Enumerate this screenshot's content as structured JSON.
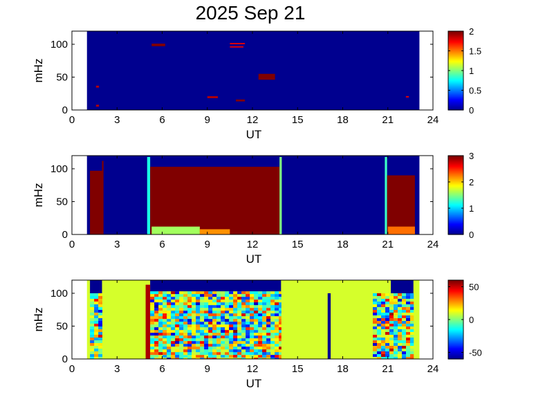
{
  "title": "2025 Sep 21",
  "colormap": [
    "#00008f",
    "#0000ff",
    "#0080ff",
    "#00ffff",
    "#80ff80",
    "#ffff00",
    "#ff8000",
    "#ff0000",
    "#800000"
  ],
  "chart_data": [
    {
      "type": "heatmap",
      "name": "panel-1",
      "xlabel": "UT",
      "ylabel": "mHz",
      "xlim": [
        0,
        24
      ],
      "ylim": [
        0,
        120
      ],
      "xticks": [
        0,
        3,
        6,
        9,
        12,
        15,
        18,
        21,
        24
      ],
      "yticks": [
        0,
        50,
        100
      ],
      "data_range": [
        1,
        23.1
      ],
      "colorbar": {
        "min": 0,
        "max": 2,
        "ticks": [
          0,
          0.5,
          1,
          1.5,
          2
        ],
        "tick_labels": [
          "0",
          "0.5",
          "1",
          "1.5",
          "2"
        ]
      },
      "background_value": 0,
      "features": [
        {
          "x0": 5.3,
          "x1": 6.2,
          "y0": 97,
          "y1": 101,
          "value": 2
        },
        {
          "x0": 10.5,
          "x1": 11.5,
          "y0": 100,
          "y1": 102,
          "value": 1.8
        },
        {
          "x0": 10.5,
          "x1": 11.4,
          "y0": 95,
          "y1": 97,
          "value": 1.8
        },
        {
          "x0": 12.4,
          "x1": 13.5,
          "y0": 46,
          "y1": 55,
          "value": 2
        },
        {
          "x0": 9.0,
          "x1": 9.7,
          "y0": 18,
          "y1": 21,
          "value": 1.9
        },
        {
          "x0": 10.9,
          "x1": 11.5,
          "y0": 13,
          "y1": 16,
          "value": 2
        },
        {
          "x0": 1.6,
          "x1": 1.8,
          "y0": 34,
          "y1": 37,
          "value": 1.9
        },
        {
          "x0": 1.6,
          "x1": 1.8,
          "y0": 5,
          "y1": 8,
          "value": 1.9
        },
        {
          "x0": 22.2,
          "x1": 22.4,
          "y0": 19,
          "y1": 21,
          "value": 1.8
        }
      ]
    },
    {
      "type": "heatmap",
      "name": "panel-2",
      "xlabel": "UT",
      "ylabel": "mHz",
      "xlim": [
        0,
        24
      ],
      "ylim": [
        0,
        120
      ],
      "xticks": [
        0,
        3,
        6,
        9,
        12,
        15,
        18,
        21,
        24
      ],
      "yticks": [
        0,
        50,
        100
      ],
      "data_range": [
        1,
        23.1
      ],
      "colorbar": {
        "min": 0,
        "max": 3,
        "ticks": [
          0,
          1,
          2,
          3
        ],
        "tick_labels": [
          "0",
          "1",
          "2",
          "3"
        ]
      },
      "background_value": 0,
      "features": [
        {
          "x0": 1.2,
          "x1": 2.1,
          "y0": 0,
          "y1": 97,
          "value": 3
        },
        {
          "x0": 2.0,
          "x1": 2.1,
          "y0": 97,
          "y1": 112,
          "value": 3
        },
        {
          "x0": 5.0,
          "x1": 5.2,
          "y0": 0,
          "y1": 118,
          "value": 1.2
        },
        {
          "x0": 5.2,
          "x1": 13.9,
          "y0": 0,
          "y1": 103,
          "value": 3
        },
        {
          "x0": 5.3,
          "x1": 8.5,
          "y0": 0,
          "y1": 12,
          "value": 1.6
        },
        {
          "x0": 8.5,
          "x1": 10.5,
          "y0": 0,
          "y1": 8,
          "value": 2.2
        },
        {
          "x0": 13.8,
          "x1": 13.95,
          "y0": 0,
          "y1": 118,
          "value": 1.5
        },
        {
          "x0": 20.8,
          "x1": 20.95,
          "y0": 0,
          "y1": 118,
          "value": 1.3
        },
        {
          "x0": 20.95,
          "x1": 22.8,
          "y0": 0,
          "y1": 90,
          "value": 3
        },
        {
          "x0": 21.0,
          "x1": 22.8,
          "y0": 0,
          "y1": 12,
          "value": 2.3
        }
      ]
    },
    {
      "type": "heatmap",
      "name": "panel-3",
      "xlabel": "UT",
      "ylabel": "mHz",
      "xlim": [
        0,
        24
      ],
      "ylim": [
        0,
        120
      ],
      "xticks": [
        0,
        3,
        6,
        9,
        12,
        15,
        18,
        21,
        24
      ],
      "yticks": [
        0,
        50,
        100
      ],
      "data_range": [
        1,
        23.1
      ],
      "colorbar": {
        "min": -60,
        "max": 60,
        "ticks": [
          -50,
          0,
          50
        ],
        "tick_labels": [
          "-50",
          "0",
          "50"
        ]
      },
      "background_value": 0,
      "features": [
        {
          "x0": 1.2,
          "x1": 2.0,
          "y0": 0,
          "y1": 100,
          "value": 0,
          "kind": "noise"
        },
        {
          "x0": 1.2,
          "x1": 2.0,
          "y0": 100,
          "y1": 120,
          "value": -60
        },
        {
          "x0": 5.2,
          "x1": 13.9,
          "y0": 0,
          "y1": 103,
          "value": 0,
          "kind": "noise"
        },
        {
          "x0": 5.2,
          "x1": 13.9,
          "y0": 103,
          "y1": 120,
          "value": -60
        },
        {
          "x0": 4.9,
          "x1": 5.2,
          "y0": 0,
          "y1": 113,
          "value": 55
        },
        {
          "x0": 17.0,
          "x1": 17.2,
          "y0": 0,
          "y1": 100,
          "value": -60
        },
        {
          "x0": 20.0,
          "x1": 22.7,
          "y0": 0,
          "y1": 100,
          "value": 0,
          "kind": "noise"
        },
        {
          "x0": 21.2,
          "x1": 22.7,
          "y0": 100,
          "y1": 120,
          "value": -60
        }
      ]
    }
  ]
}
